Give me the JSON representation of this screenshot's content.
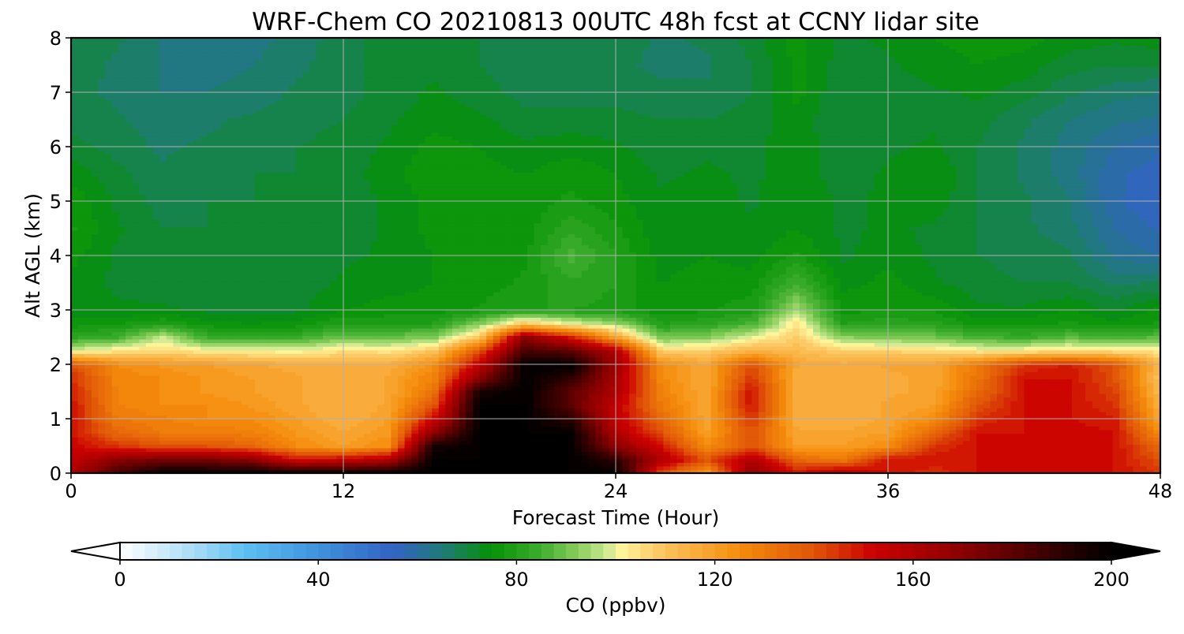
{
  "chart_data": {
    "type": "heatmap",
    "title": "WRF-Chem CO  20210813 00UTC 48h fcst at CCNY lidar site",
    "xlabel": "Forecast Time (Hour)",
    "ylabel": "Alt AGL (km)",
    "xlim": [
      0,
      48
    ],
    "ylim": [
      0,
      8
    ],
    "x_ticks": [
      "0",
      "12",
      "24",
      "36",
      "48"
    ],
    "y_ticks": [
      "0",
      "1",
      "2",
      "3",
      "4",
      "5",
      "6",
      "7",
      "8"
    ],
    "grid": true,
    "colorbar": {
      "label": "CO  (ppbv)",
      "orientation": "horizontal",
      "placement": "bottom",
      "range": [
        0,
        200
      ],
      "extend": "both",
      "ticks": [
        "0",
        "40",
        "80",
        "120",
        "160",
        "200"
      ],
      "color_stops": [
        {
          "value": 0,
          "color": "#ffffff"
        },
        {
          "value": 15,
          "color": "#a8dcf5"
        },
        {
          "value": 25,
          "color": "#5cc1f2"
        },
        {
          "value": 40,
          "color": "#3f92dc"
        },
        {
          "value": 55,
          "color": "#3263c4"
        },
        {
          "value": 65,
          "color": "#1f7a78"
        },
        {
          "value": 75,
          "color": "#069106"
        },
        {
          "value": 85,
          "color": "#3ead2e"
        },
        {
          "value": 92,
          "color": "#86cc58"
        },
        {
          "value": 98,
          "color": "#c8e890"
        },
        {
          "value": 101,
          "color": "#fff59a"
        },
        {
          "value": 110,
          "color": "#fcc25c"
        },
        {
          "value": 125,
          "color": "#f58c0c"
        },
        {
          "value": 140,
          "color": "#e05408"
        },
        {
          "value": 152,
          "color": "#cc0000"
        },
        {
          "value": 170,
          "color": "#8b0000"
        },
        {
          "value": 190,
          "color": "#2c0000"
        },
        {
          "value": 200,
          "color": "#000000"
        }
      ]
    },
    "x": [
      0,
      2,
      4,
      6,
      8,
      10,
      12,
      14,
      16,
      18,
      20,
      22,
      24,
      26,
      28,
      30,
      32,
      34,
      36,
      38,
      40,
      42,
      44,
      46,
      48
    ],
    "y": [
      0,
      0.25,
      0.5,
      0.75,
      1,
      1.25,
      1.5,
      1.75,
      2,
      2.25,
      2.5,
      2.75,
      3,
      3.5,
      4,
      4.5,
      5,
      5.5,
      6,
      6.5,
      7,
      7.5,
      8
    ],
    "values": [
      [
        160,
        185,
        200,
        200,
        200,
        200,
        200,
        200,
        200,
        200,
        200,
        200,
        200,
        140,
        120,
        170,
        150,
        160,
        150,
        145,
        150,
        150,
        150,
        150,
        145
      ],
      [
        155,
        170,
        175,
        175,
        170,
        150,
        155,
        160,
        200,
        200,
        200,
        200,
        190,
        160,
        140,
        160,
        135,
        130,
        150,
        150,
        150,
        150,
        150,
        150,
        140
      ],
      [
        152,
        145,
        140,
        140,
        135,
        125,
        120,
        125,
        195,
        200,
        200,
        200,
        170,
        150,
        125,
        140,
        120,
        120,
        125,
        145,
        150,
        150,
        150,
        150,
        135
      ],
      [
        150,
        135,
        130,
        130,
        128,
        122,
        118,
        122,
        170,
        200,
        200,
        200,
        160,
        140,
        120,
        140,
        118,
        118,
        120,
        135,
        150,
        150,
        152,
        150,
        125
      ],
      [
        150,
        130,
        128,
        125,
        125,
        120,
        115,
        120,
        152,
        200,
        200,
        190,
        155,
        135,
        118,
        145,
        115,
        115,
        118,
        125,
        145,
        150,
        150,
        148,
        118
      ],
      [
        150,
        128,
        125,
        125,
        122,
        118,
        115,
        118,
        140,
        200,
        200,
        180,
        155,
        130,
        118,
        150,
        115,
        115,
        118,
        120,
        140,
        150,
        150,
        145,
        115
      ],
      [
        148,
        127,
        125,
        122,
        120,
        118,
        115,
        118,
        132,
        195,
        200,
        180,
        160,
        128,
        117,
        150,
        115,
        115,
        117,
        118,
        135,
        150,
        150,
        143,
        112
      ],
      [
        146,
        127,
        125,
        122,
        120,
        118,
        115,
        118,
        128,
        170,
        200,
        190,
        162,
        126,
        117,
        145,
        115,
        115,
        117,
        118,
        132,
        150,
        150,
        140,
        110
      ],
      [
        140,
        125,
        122,
        120,
        118,
        116,
        115,
        116,
        124,
        155,
        200,
        200,
        165,
        125,
        118,
        140,
        118,
        116,
        118,
        118,
        130,
        145,
        148,
        140,
        112
      ],
      [
        100,
        104,
        106,
        103,
        102,
        101,
        105,
        104,
        110,
        140,
        185,
        180,
        160,
        108,
        108,
        115,
        112,
        108,
        107,
        106,
        103,
        104,
        106,
        105,
        104
      ],
      [
        82,
        85,
        98,
        84,
        83,
        84,
        90,
        89,
        92,
        110,
        170,
        150,
        120,
        90,
        92,
        100,
        108,
        93,
        91,
        90,
        86,
        84,
        88,
        86,
        88
      ],
      [
        76,
        77,
        80,
        76,
        75,
        76,
        80,
        80,
        80,
        92,
        110,
        100,
        94,
        80,
        82,
        86,
        104,
        80,
        82,
        81,
        76,
        77,
        78,
        76,
        78
      ],
      [
        74,
        73,
        73,
        72,
        71,
        72,
        75,
        76,
        76,
        78,
        80,
        80,
        79,
        76,
        77,
        79,
        95,
        77,
        77,
        77,
        73,
        73,
        75,
        72,
        76
      ],
      [
        74,
        72,
        71,
        71,
        70,
        71,
        73,
        74,
        75,
        76,
        78,
        82,
        80,
        75,
        76,
        76,
        85,
        74,
        76,
        73,
        71,
        70,
        70,
        67,
        68
      ],
      [
        76,
        72,
        70,
        70,
        70,
        71,
        72,
        73,
        75,
        76,
        77,
        86,
        80,
        74,
        75,
        74,
        78,
        72,
        74,
        72,
        70,
        69,
        68,
        62,
        60
      ],
      [
        78,
        73,
        70,
        70,
        70,
        71,
        71,
        73,
        76,
        76,
        76,
        82,
        78,
        73,
        74,
        73,
        75,
        72,
        73,
        72,
        70,
        68,
        66,
        60,
        57
      ],
      [
        77,
        72,
        69,
        70,
        70,
        70,
        71,
        73,
        76,
        76,
        76,
        78,
        76,
        73,
        74,
        72,
        75,
        72,
        73,
        74,
        70,
        68,
        65,
        58,
        55
      ],
      [
        74,
        71,
        68,
        69,
        70,
        70,
        71,
        74,
        77,
        76,
        75,
        77,
        75,
        72,
        73,
        72,
        74,
        71,
        73,
        75,
        70,
        67,
        64,
        58,
        56
      ],
      [
        71,
        69,
        67,
        68,
        69,
        70,
        71,
        73,
        76,
        75,
        73,
        74,
        73,
        71,
        72,
        72,
        74,
        71,
        72,
        73,
        70,
        67,
        64,
        60,
        58
      ],
      [
        69,
        68,
        66,
        67,
        68,
        69,
        70,
        72,
        74,
        73,
        71,
        71,
        71,
        70,
        70,
        71,
        74,
        70,
        71,
        72,
        71,
        68,
        65,
        63,
        62
      ],
      [
        68,
        67,
        65,
        65,
        66,
        68,
        69,
        71,
        73,
        71,
        69,
        69,
        69,
        68,
        68,
        70,
        76,
        70,
        71,
        72,
        73,
        71,
        68,
        66,
        65
      ],
      [
        69,
        67,
        65,
        64,
        65,
        67,
        69,
        71,
        72,
        70,
        69,
        69,
        68,
        67,
        67,
        70,
        76,
        71,
        72,
        74,
        75,
        74,
        71,
        70,
        70
      ],
      [
        70,
        68,
        65,
        64,
        64,
        66,
        69,
        71,
        72,
        70,
        70,
        70,
        69,
        67,
        68,
        71,
        76,
        72,
        73,
        75,
        76,
        76,
        74,
        73,
        74
      ]
    ]
  }
}
